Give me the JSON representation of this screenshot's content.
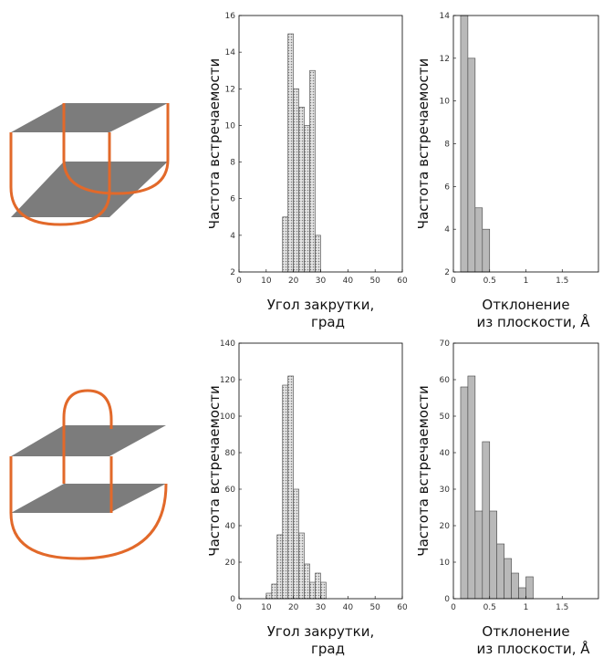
{
  "colors": {
    "plate": "#7c7c7c",
    "loop": "#e2692a",
    "bar_dotted_fill": "#d9d9d9",
    "bar_gray_fill": "#b9b9b9",
    "axis": "#000000"
  },
  "chart_data": [
    {
      "type": "bar",
      "ylabel": "Частота встречаемости",
      "xlabel_line1": "Угол закрутки,",
      "xlabel_line2": "град",
      "xlim": [
        0,
        60
      ],
      "ylim": [
        2,
        16
      ],
      "xticks": [
        0,
        10,
        20,
        30,
        40,
        50,
        60
      ],
      "yticks": [
        2,
        4,
        6,
        8,
        10,
        12,
        14,
        16
      ],
      "bin_width": 2,
      "style": "dotted",
      "bins": [
        {
          "x": 16,
          "value": 5
        },
        {
          "x": 18,
          "value": 15
        },
        {
          "x": 20,
          "value": 12
        },
        {
          "x": 22,
          "value": 11
        },
        {
          "x": 24,
          "value": 10
        },
        {
          "x": 26,
          "value": 13
        },
        {
          "x": 28,
          "value": 4
        }
      ]
    },
    {
      "type": "bar",
      "ylabel": "Частота встречаемости",
      "xlabel_line1": "Отклонение",
      "xlabel_line2": "из плоскости, Å",
      "xlim": [
        0,
        2
      ],
      "ylim": [
        2,
        14
      ],
      "xticks": [
        0,
        0.5,
        1,
        1.5
      ],
      "yticks": [
        2,
        4,
        6,
        8,
        10,
        12,
        14
      ],
      "bin_width": 0.1,
      "style": "gray",
      "bins": [
        {
          "x": 0.1,
          "value": 14
        },
        {
          "x": 0.2,
          "value": 12
        },
        {
          "x": 0.3,
          "value": 5
        },
        {
          "x": 0.4,
          "value": 4
        }
      ]
    },
    {
      "type": "bar",
      "ylabel": "Частота встречаемости",
      "xlabel_line1": "Угол закрутки,",
      "xlabel_line2": "град",
      "xlim": [
        0,
        60
      ],
      "ylim": [
        0,
        140
      ],
      "xticks": [
        0,
        10,
        20,
        30,
        40,
        50,
        60
      ],
      "yticks": [
        0,
        20,
        40,
        60,
        80,
        100,
        120,
        140
      ],
      "bin_width": 2,
      "style": "dotted",
      "bins": [
        {
          "x": 10,
          "value": 3
        },
        {
          "x": 12,
          "value": 8
        },
        {
          "x": 14,
          "value": 35
        },
        {
          "x": 16,
          "value": 117
        },
        {
          "x": 18,
          "value": 122
        },
        {
          "x": 20,
          "value": 60
        },
        {
          "x": 22,
          "value": 36
        },
        {
          "x": 24,
          "value": 19
        },
        {
          "x": 26,
          "value": 9
        },
        {
          "x": 28,
          "value": 14
        },
        {
          "x": 30,
          "value": 9
        }
      ]
    },
    {
      "type": "bar",
      "ylabel": "Частота встречаемости",
      "xlabel_line1": "Отклонение",
      "xlabel_line2": "из плоскости, Å",
      "xlim": [
        0,
        2
      ],
      "ylim": [
        0,
        70
      ],
      "xticks": [
        0,
        0.5,
        1,
        1.5
      ],
      "yticks": [
        0,
        10,
        20,
        30,
        40,
        50,
        60,
        70
      ],
      "bin_width": 0.1,
      "style": "gray",
      "bins": [
        {
          "x": 0.1,
          "value": 58
        },
        {
          "x": 0.2,
          "value": 61
        },
        {
          "x": 0.3,
          "value": 24
        },
        {
          "x": 0.4,
          "value": 43
        },
        {
          "x": 0.5,
          "value": 24
        },
        {
          "x": 0.6,
          "value": 15
        },
        {
          "x": 0.7,
          "value": 11
        },
        {
          "x": 0.8,
          "value": 7
        },
        {
          "x": 0.9,
          "value": 3
        },
        {
          "x": 1.0,
          "value": 6
        }
      ]
    }
  ]
}
